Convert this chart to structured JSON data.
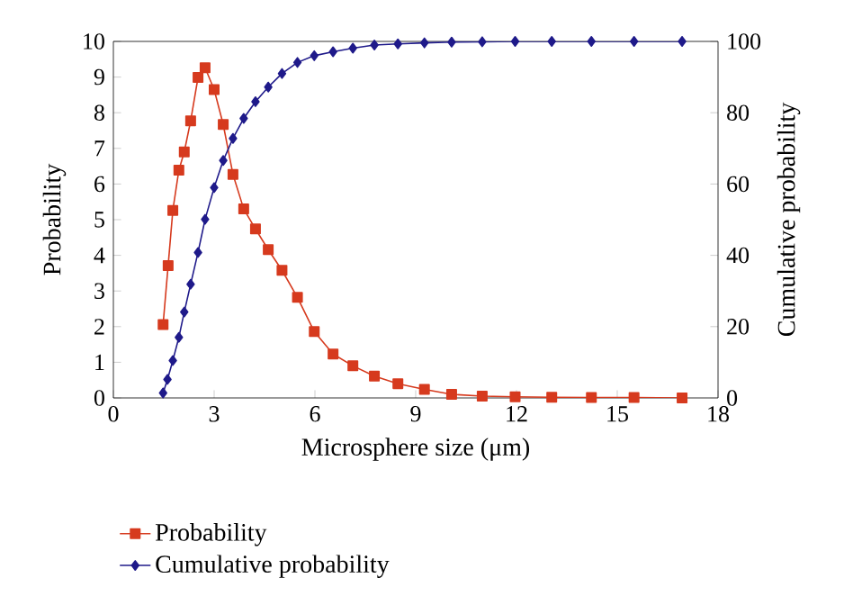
{
  "chart_data": {
    "type": "line",
    "xlabel": "Microsphere size (μm)",
    "ylabel": "Probability",
    "y2label": "Cumulative probability",
    "xlim": [
      0,
      18
    ],
    "xticks": [
      0,
      3,
      6,
      9,
      12,
      15,
      18
    ],
    "ylim": [
      0,
      10
    ],
    "yticks": [
      0,
      1,
      2,
      3,
      4,
      5,
      6,
      7,
      8,
      9,
      10
    ],
    "y2lim": [
      0,
      100
    ],
    "y2ticks": [
      0,
      20,
      40,
      60,
      80,
      100
    ],
    "legend": "bottom",
    "line_style": "solid",
    "series": [
      {
        "name": "Probability",
        "color": "#d63a1e",
        "marker": "square",
        "x": [
          1.48,
          1.63,
          1.77,
          1.95,
          2.11,
          2.3,
          2.52,
          2.73,
          3.0,
          3.27,
          3.56,
          3.88,
          4.23,
          4.61,
          5.02,
          5.48,
          5.98,
          6.54,
          7.13,
          7.77,
          8.47,
          9.26,
          10.07,
          10.98,
          11.96,
          13.05,
          14.23,
          15.5,
          16.93
        ],
        "values": [
          2.06,
          3.71,
          5.26,
          6.39,
          6.9,
          7.77,
          8.99,
          9.26,
          8.65,
          7.67,
          6.27,
          5.3,
          4.74,
          4.16,
          3.58,
          2.82,
          1.86,
          1.23,
          0.9,
          0.61,
          0.4,
          0.24,
          0.1,
          0.05,
          0.03,
          0.02,
          0.01,
          0.01,
          0
        ]
      },
      {
        "name": "Cumulative probability",
        "color": "#1f1a8a",
        "marker": "diamond",
        "axis": "y2",
        "x": [
          1.48,
          1.61,
          1.77,
          1.95,
          2.11,
          2.3,
          2.52,
          2.73,
          3.0,
          3.27,
          3.56,
          3.88,
          4.23,
          4.61,
          5.02,
          5.48,
          5.98,
          6.54,
          7.13,
          7.77,
          8.47,
          9.26,
          10.07,
          10.98,
          11.96,
          13.05,
          14.23,
          15.5,
          16.93
        ],
        "values": [
          1.4,
          5.2,
          10.5,
          17.0,
          24.1,
          31.9,
          40.8,
          50.1,
          59.0,
          66.6,
          72.8,
          78.4,
          83.1,
          87.2,
          91.0,
          94.1,
          96.0,
          97.1,
          98.1,
          99.0,
          99.3,
          99.6,
          99.8,
          99.9,
          100,
          100,
          100,
          100,
          100
        ]
      }
    ]
  }
}
